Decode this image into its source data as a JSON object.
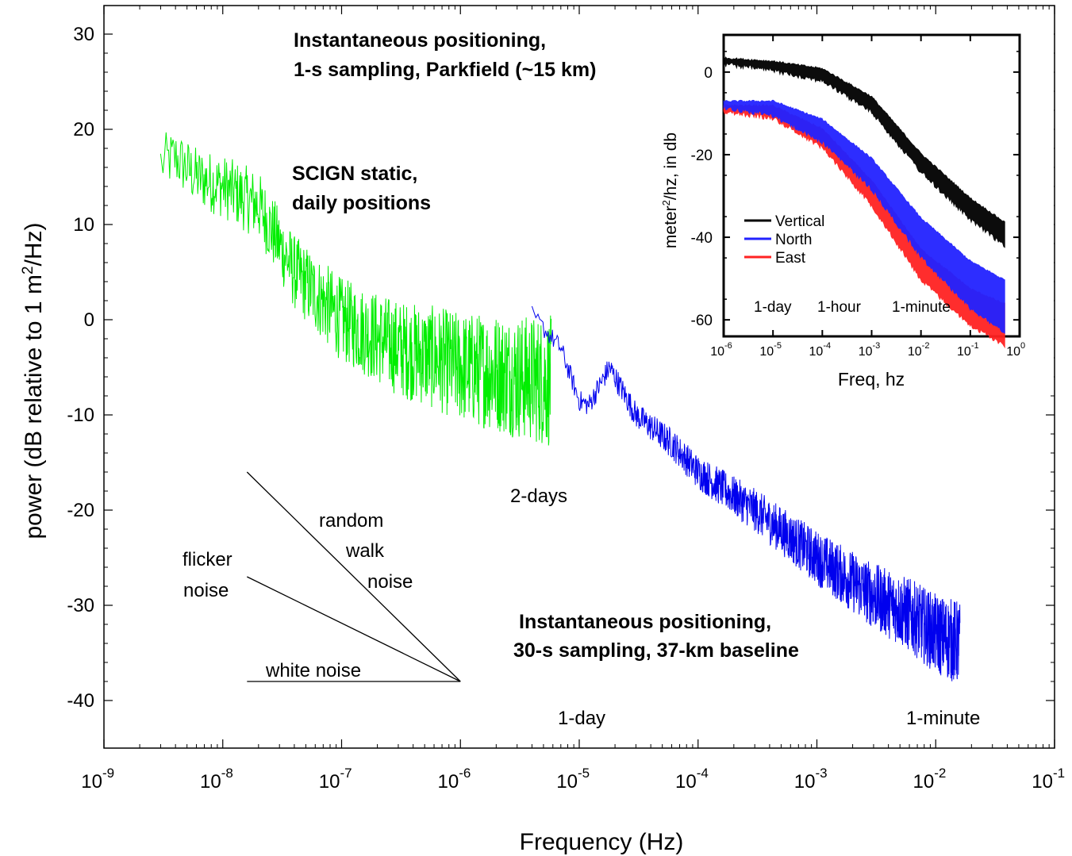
{
  "chart_data": [
    {
      "type": "line",
      "xlabel": "Frequency (Hz)",
      "ylabel_main": "power (dB relative to 1 m",
      "ylabel_sup": "2",
      "ylabel_tail": "/Hz)",
      "xscale": "log",
      "xlim": [
        1e-09,
        0.1
      ],
      "ylim": [
        -45,
        33
      ],
      "x_tick_exponents": [
        "-9",
        "-8",
        "-7",
        "-6",
        "-5",
        "-4",
        "-3",
        "-2",
        "-1"
      ],
      "x_tick_base": "10",
      "y_ticks": [
        30,
        20,
        10,
        0,
        -10,
        -20,
        -30,
        -40
      ],
      "y_tick_labels": [
        "30",
        "20",
        "10",
        "0",
        "-10",
        "-20",
        "-30",
        "-40"
      ],
      "series": [
        {
          "color": "#00ee00",
          "x": [
            3e-09,
            4e-09,
            6e-09,
            1e-08,
            2e-08,
            4e-08,
            1e-07,
            3e-07,
            6e-07,
            1e-06,
            2e-06,
            3e-06,
            5.8e-06
          ],
          "y": [
            16.5,
            17,
            15,
            14,
            12,
            5,
            0,
            -3,
            -4,
            -5,
            -5.5,
            -6,
            -6.5
          ]
        },
        {
          "color": "#0000ee",
          "x": [
            4e-06,
            7e-06,
            1e-05,
            1.2e-05,
            1.8e-05,
            3e-05,
            6e-05,
            0.0001,
            0.0003,
            0.001,
            0.003,
            0.006,
            0.01,
            0.016
          ],
          "y": [
            0.5,
            -3,
            -8.5,
            -9,
            -5,
            -10,
            -13,
            -16,
            -20,
            -25,
            -29,
            -31,
            -33,
            -34
          ]
        }
      ],
      "reference_lines": [
        {
          "name": "random walk noise",
          "x": [
            1.6e-08,
            1e-06
          ],
          "y": [
            -16,
            -38
          ]
        },
        {
          "name": "flicker noise",
          "x": [
            1.6e-08,
            1e-06
          ],
          "y": [
            -27,
            -38
          ]
        },
        {
          "name": "white noise",
          "x": [
            1.6e-08,
            1e-06
          ],
          "y": [
            -38,
            -38
          ]
        }
      ],
      "annotations": {
        "top_line1": "Instantaneous positioning,",
        "top_line2": "1-s sampling, Parkfield (~15 km)",
        "scign_line1": "SCIGN static,",
        "scign_line2": "daily positions",
        "two_days": "2-days",
        "random_line1": "random",
        "random_line2": "walk",
        "random_line3": "noise",
        "flicker_line1": "flicker",
        "flicker_line2": "noise",
        "white": "white noise",
        "inst30_line1": "Instantaneous positioning,",
        "inst30_line2": "30-s sampling, 37-km baseline",
        "one_day": "1-day",
        "one_minute": "1-minute"
      }
    },
    {
      "type": "line",
      "xlabel": "Freq, hz",
      "ylabel": "meter",
      "ylabel_sup": "2",
      "ylabel_tail": "/hz, in db",
      "xscale": "log",
      "xlim": [
        1e-06,
        1
      ],
      "ylim": [
        -64,
        9
      ],
      "x_tick_exponents": [
        "-6",
        "-5",
        "-4",
        "-3",
        "-2",
        "-1",
        "0"
      ],
      "x_tick_base": "10",
      "y_ticks": [
        0,
        -20,
        -40,
        -60
      ],
      "y_tick_labels": [
        "0",
        "-20",
        "-40",
        "-60"
      ],
      "period_labels": [
        "1-day",
        "1-hour",
        "1-minute"
      ],
      "legend": [
        "Vertical",
        "North",
        "East"
      ],
      "legend_position": "lower-left",
      "series": [
        {
          "name": "Vertical",
          "color": "#000000",
          "x": [
            1e-06,
            1e-05,
            0.0001,
            0.001,
            0.01,
            0.1,
            0.5
          ],
          "y": [
            3,
            2,
            0,
            -7,
            -21,
            -32,
            -38
          ]
        },
        {
          "name": "North",
          "color": "#2222ff",
          "x": [
            1e-06,
            1e-05,
            0.0001,
            0.001,
            0.01,
            0.1,
            0.5
          ],
          "y": [
            -7.5,
            -8,
            -13,
            -23,
            -38,
            -49,
            -54
          ]
        },
        {
          "name": "East",
          "color": "#ff2222",
          "x": [
            1e-06,
            1e-05,
            0.0001,
            0.001,
            0.01,
            0.1,
            0.5
          ],
          "y": [
            -8.5,
            -9,
            -15,
            -28,
            -45,
            -55,
            -59
          ]
        }
      ]
    }
  ]
}
